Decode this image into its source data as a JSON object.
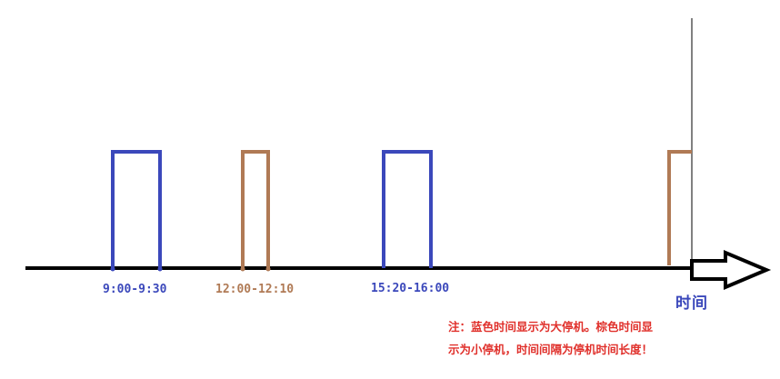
{
  "colors": {
    "large_shutdown": "#3b48bb",
    "small_shutdown": "#b07a55",
    "axis": "#000000",
    "note": "#e0302b"
  },
  "intervals": [
    {
      "label": "9:00-9:30",
      "type": "large_shutdown"
    },
    {
      "label": "12:00-12:10",
      "type": "small_shutdown"
    },
    {
      "label": "15:20-16:00",
      "type": "large_shutdown"
    }
  ],
  "axis_label": "时间",
  "note": {
    "line1": "注：蓝色时间显示为大停机。棕色时间显",
    "line2": "示为小停机，时间间隔为停机时间长度！"
  }
}
